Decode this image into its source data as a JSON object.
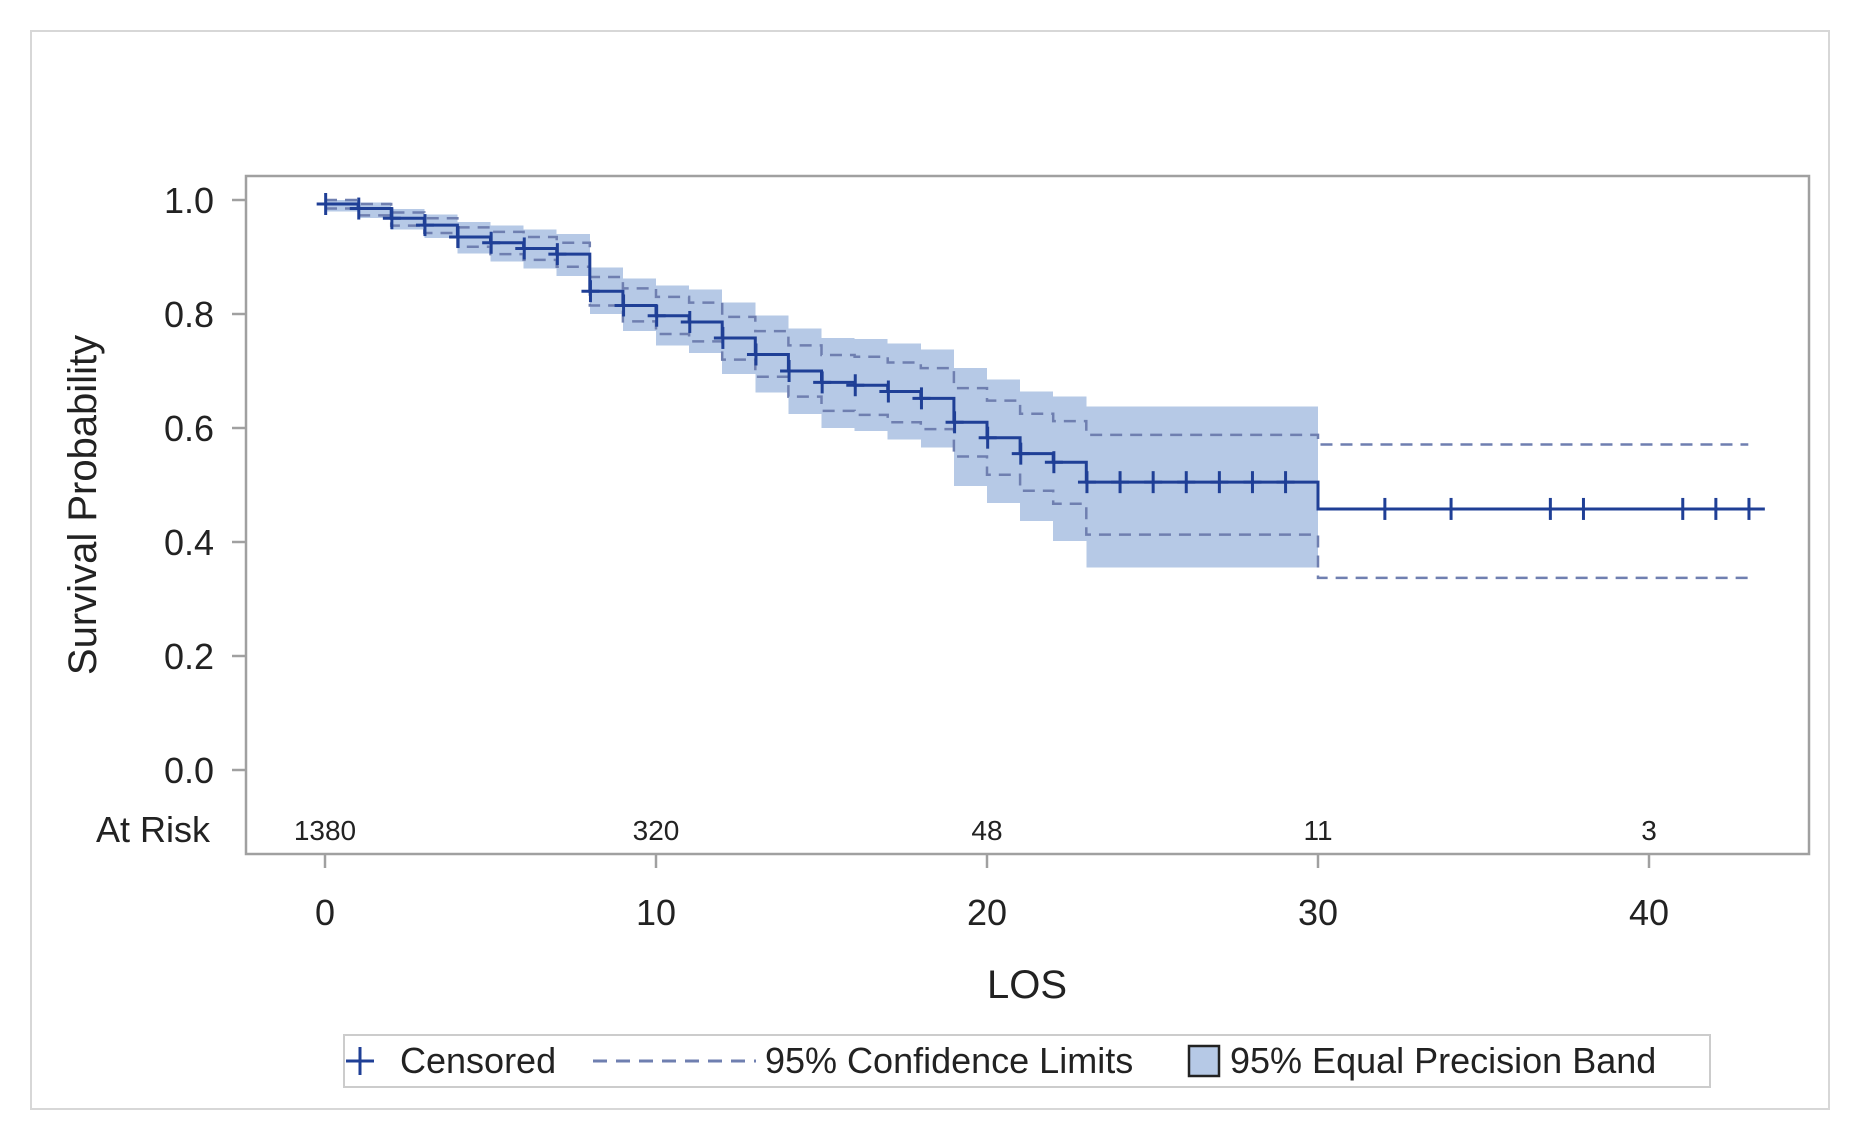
{
  "chart_data": {
    "type": "line",
    "title": "",
    "xlabel": "LOS",
    "ylabel": "Survival Probability",
    "xlim": [
      0,
      43.5
    ],
    "ylim": [
      0,
      1
    ],
    "x_ticks": [
      0,
      10,
      20,
      30,
      40
    ],
    "y_ticks": [
      "0.0",
      "0.2",
      "0.4",
      "0.6",
      "0.8",
      "1.0"
    ],
    "grid": false,
    "at_risk": {
      "label": "At Risk",
      "values": [
        {
          "x": 0,
          "n": "1380"
        },
        {
          "x": 10,
          "n": "320"
        },
        {
          "x": 20,
          "n": "48"
        },
        {
          "x": 30,
          "n": "11"
        },
        {
          "x": 40,
          "n": "3"
        }
      ]
    },
    "legend": {
      "position": "bottom",
      "items": [
        {
          "key": "censored",
          "label": "Censored"
        },
        {
          "key": "ci",
          "label": "95% Confidence Limits"
        },
        {
          "key": "band",
          "label": "95% Equal Precision Band"
        }
      ]
    },
    "colors": {
      "line": "#1f3f96",
      "band": "#b6c9e6",
      "ci": "#6f7fb0",
      "axis": "#a0a0a0"
    },
    "series": [
      {
        "name": "Censored",
        "survival": [
          [
            0,
            0.993
          ],
          [
            1,
            0.985
          ],
          [
            2,
            0.968
          ],
          [
            3,
            0.956
          ],
          [
            4,
            0.935
          ],
          [
            5,
            0.925
          ],
          [
            6,
            0.915
          ],
          [
            7,
            0.905
          ],
          [
            8,
            0.84
          ],
          [
            9,
            0.815
          ],
          [
            10,
            0.797
          ],
          [
            11,
            0.786
          ],
          [
            12,
            0.758
          ],
          [
            13,
            0.729
          ],
          [
            14,
            0.7
          ],
          [
            15,
            0.68
          ],
          [
            16,
            0.675
          ],
          [
            17,
            0.664
          ],
          [
            18,
            0.652
          ],
          [
            19,
            0.61
          ],
          [
            20,
            0.583
          ],
          [
            21,
            0.555
          ],
          [
            22,
            0.54
          ],
          [
            23,
            0.505
          ],
          [
            30,
            0.458
          ],
          [
            43.5,
            0.458
          ]
        ],
        "censored_times": [
          0,
          1,
          2,
          3,
          4,
          5,
          6,
          7,
          8,
          9,
          10,
          11,
          12,
          13,
          14,
          15,
          16,
          17,
          18,
          19,
          20,
          21,
          22,
          23,
          24,
          25,
          26,
          27,
          28,
          29,
          32,
          34,
          37,
          38,
          41,
          42,
          43
        ]
      },
      {
        "name": "95% Confidence Limits",
        "upper": [
          [
            0,
            1.0
          ],
          [
            1,
            0.993
          ],
          [
            2,
            0.978
          ],
          [
            3,
            0.968
          ],
          [
            4,
            0.952
          ],
          [
            5,
            0.944
          ],
          [
            6,
            0.935
          ],
          [
            7,
            0.925
          ],
          [
            8,
            0.865
          ],
          [
            9,
            0.845
          ],
          [
            10,
            0.83
          ],
          [
            11,
            0.82
          ],
          [
            12,
            0.795
          ],
          [
            13,
            0.77
          ],
          [
            14,
            0.745
          ],
          [
            15,
            0.728
          ],
          [
            16,
            0.725
          ],
          [
            17,
            0.715
          ],
          [
            18,
            0.705
          ],
          [
            19,
            0.67
          ],
          [
            20,
            0.648
          ],
          [
            21,
            0.625
          ],
          [
            22,
            0.612
          ],
          [
            23,
            0.588
          ],
          [
            30,
            0.571
          ],
          [
            43,
            0.571
          ]
        ],
        "lower": [
          [
            0,
            0.985
          ],
          [
            1,
            0.973
          ],
          [
            2,
            0.955
          ],
          [
            3,
            0.942
          ],
          [
            4,
            0.918
          ],
          [
            5,
            0.905
          ],
          [
            6,
            0.895
          ],
          [
            7,
            0.883
          ],
          [
            8,
            0.815
          ],
          [
            9,
            0.787
          ],
          [
            10,
            0.765
          ],
          [
            11,
            0.752
          ],
          [
            12,
            0.72
          ],
          [
            13,
            0.69
          ],
          [
            14,
            0.655
          ],
          [
            15,
            0.63
          ],
          [
            16,
            0.623
          ],
          [
            17,
            0.61
          ],
          [
            18,
            0.598
          ],
          [
            19,
            0.55
          ],
          [
            20,
            0.518
          ],
          [
            21,
            0.49
          ],
          [
            22,
            0.467
          ],
          [
            23,
            0.413
          ],
          [
            30,
            0.337
          ],
          [
            43,
            0.337
          ]
        ]
      },
      {
        "name": "95% Equal Precision Band",
        "upper": [
          [
            0,
            1.0
          ],
          [
            1,
            0.996
          ],
          [
            2,
            0.984
          ],
          [
            3,
            0.975
          ],
          [
            4,
            0.961
          ],
          [
            5,
            0.955
          ],
          [
            6,
            0.948
          ],
          [
            7,
            0.94
          ],
          [
            8,
            0.882
          ],
          [
            9,
            0.862
          ],
          [
            10,
            0.85
          ],
          [
            11,
            0.843
          ],
          [
            12,
            0.82
          ],
          [
            13,
            0.797
          ],
          [
            14,
            0.775
          ],
          [
            15,
            0.758
          ],
          [
            16,
            0.756
          ],
          [
            17,
            0.748
          ],
          [
            18,
            0.738
          ],
          [
            19,
            0.705
          ],
          [
            20,
            0.685
          ],
          [
            21,
            0.664
          ],
          [
            22,
            0.655
          ],
          [
            23,
            0.638
          ],
          [
            30,
            0.638
          ]
        ],
        "lower": [
          [
            0,
            0.98
          ],
          [
            1,
            0.968
          ],
          [
            2,
            0.948
          ],
          [
            3,
            0.933
          ],
          [
            4,
            0.906
          ],
          [
            5,
            0.892
          ],
          [
            6,
            0.88
          ],
          [
            7,
            0.867
          ],
          [
            8,
            0.8
          ],
          [
            9,
            0.77
          ],
          [
            10,
            0.745
          ],
          [
            11,
            0.732
          ],
          [
            12,
            0.695
          ],
          [
            13,
            0.662
          ],
          [
            14,
            0.625
          ],
          [
            15,
            0.6
          ],
          [
            16,
            0.595
          ],
          [
            17,
            0.58
          ],
          [
            18,
            0.566
          ],
          [
            19,
            0.498
          ],
          [
            20,
            0.468
          ],
          [
            21,
            0.437
          ],
          [
            22,
            0.402
          ],
          [
            23,
            0.355
          ],
          [
            30,
            0.355
          ]
        ]
      }
    ]
  }
}
